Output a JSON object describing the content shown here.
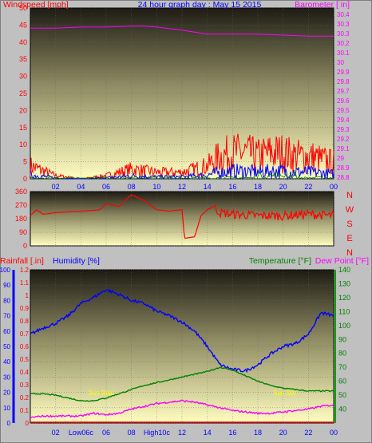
{
  "title": "24 hour graph day : May 15 2015",
  "hour_ticks": [
    "02",
    "04",
    "06",
    "08",
    "10",
    "12",
    "14",
    "16",
    "18",
    "20",
    "22",
    "00"
  ],
  "bottom_ticks": [
    "02",
    "Low06c",
    "06",
    "08",
    "High10c",
    "12",
    "14",
    "16",
    "18",
    "20",
    "22",
    "00"
  ],
  "colors": {
    "windspeed": "#ff0000",
    "gust_low": "#0000ff",
    "avg": "#008000",
    "barometer": "#ff00ff",
    "humidity": "#0000ff",
    "temperature": "#008000",
    "dewpoint": "#ff00ff",
    "rainfall": "#ff0000",
    "sun": "#ffff00"
  },
  "chart_data": [
    {
      "type": "line",
      "panel": "wind-barometer",
      "ylabel_left": "Windspeed [mph]",
      "ylabel_right": "Barometer [ in]",
      "ylim_left": [
        0,
        50
      ],
      "yticks_left": [
        0,
        5,
        10,
        15,
        20,
        25,
        30,
        35,
        40,
        45,
        50
      ],
      "ylim_right": [
        28.8,
        30.5
      ],
      "yticks_right": [
        "28.8",
        "28.9",
        "29",
        "29.1",
        "29.2",
        "29.3",
        "29.4",
        "29.5",
        "29.6",
        "29.7",
        "29.8",
        "29.9",
        "30",
        "30.1",
        "30.2",
        "30.3",
        "30.3",
        "30.4"
      ],
      "series": [
        {
          "name": "Windspeed",
          "x": [
            0,
            2,
            4,
            6,
            8,
            10,
            12,
            13,
            14,
            15,
            16,
            17,
            18,
            19,
            20,
            21,
            22,
            23,
            24
          ],
          "values": [
            4,
            1,
            0,
            1,
            3,
            2,
            2,
            3,
            4,
            7,
            8,
            8,
            7,
            8,
            8,
            7,
            7,
            6,
            5
          ]
        },
        {
          "name": "Barometer",
          "x": [
            0,
            2,
            4,
            6,
            8,
            9,
            10,
            12,
            13,
            14,
            16,
            18,
            20,
            22,
            23,
            24
          ],
          "values": [
            30.3,
            30.3,
            30.31,
            30.31,
            30.32,
            30.32,
            30.31,
            30.28,
            30.26,
            30.24,
            30.24,
            30.24,
            30.23,
            30.22,
            30.22,
            30.22
          ]
        }
      ]
    },
    {
      "type": "line",
      "panel": "wind-direction",
      "ylim": [
        0,
        360
      ],
      "yticks": [
        0,
        90,
        180,
        270,
        360
      ],
      "compass": [
        "N",
        "W",
        "S",
        "E",
        "N"
      ],
      "series": [
        {
          "name": "Direction",
          "x": [
            0,
            0.5,
            1,
            2,
            4,
            5,
            5.5,
            6,
            7,
            8,
            9,
            10,
            11,
            12,
            12.2,
            13,
            13.5,
            14,
            14.5,
            15,
            16,
            18,
            20,
            22,
            24
          ],
          "values": [
            200,
            240,
            210,
            220,
            230,
            235,
            240,
            280,
            260,
            340,
            300,
            240,
            230,
            240,
            50,
            60,
            200,
            240,
            260,
            220,
            210,
            200,
            200,
            210,
            200
          ]
        }
      ]
    },
    {
      "type": "line",
      "panel": "temperature-humidity",
      "ylabel_rain": "Rainfall [.in]",
      "ylabel_humidity": "Humidity [%]",
      "ylabel_temp": "Temperature [°F]",
      "ylabel_dew": "Dew Point [°F]",
      "ylim_humidity": [
        0,
        100
      ],
      "yticks_humidity": [
        0,
        10,
        20,
        30,
        40,
        50,
        60,
        70,
        80,
        90,
        100
      ],
      "ylim_rain": [
        0,
        1.2
      ],
      "yticks_rain": [
        "0",
        "0.1",
        "0.2",
        "0.3",
        "0.4",
        "0.5",
        "0.6",
        "0.7",
        "0.8",
        "0.9",
        "1",
        "1.1",
        "1.2"
      ],
      "ylim_temp": [
        30,
        140
      ],
      "yticks_temp": [
        40,
        50,
        60,
        70,
        80,
        90,
        100,
        110,
        120,
        130,
        140
      ],
      "series": [
        {
          "name": "Humidity",
          "x": [
            0,
            1,
            2,
            3,
            4,
            5,
            6,
            7,
            8,
            9,
            10,
            11,
            12,
            13,
            14,
            15,
            16,
            17,
            18,
            19,
            20,
            21,
            22,
            23,
            24
          ],
          "values": [
            58,
            62,
            65,
            70,
            78,
            82,
            87,
            84,
            80,
            78,
            73,
            70,
            66,
            60,
            50,
            38,
            35,
            34,
            38,
            45,
            50,
            52,
            58,
            72,
            70
          ]
        },
        {
          "name": "Temperature",
          "x": [
            0,
            1,
            2,
            3,
            4,
            5,
            6,
            7,
            8,
            9,
            10,
            11,
            12,
            13,
            14,
            15,
            16,
            17,
            18,
            19,
            20,
            21,
            22,
            23,
            24
          ],
          "values": [
            51,
            51,
            50,
            48,
            46,
            46,
            48,
            51,
            54,
            57,
            59,
            61,
            63,
            65,
            67,
            70,
            68,
            64,
            60,
            57,
            55,
            54,
            53,
            53,
            53
          ]
        },
        {
          "name": "Dew Point",
          "x": [
            0,
            1,
            2,
            3,
            4,
            5,
            6,
            7,
            8,
            9,
            10,
            11,
            12,
            13,
            14,
            15,
            16,
            17,
            18,
            19,
            20,
            21,
            22,
            23,
            24
          ],
          "values": [
            34,
            35,
            35,
            35,
            35,
            37,
            36,
            37,
            40,
            42,
            44,
            45,
            46,
            45,
            43,
            41,
            39,
            38,
            37,
            37,
            38,
            39,
            40,
            42,
            43
          ]
        }
      ]
    }
  ],
  "annotations": [
    "Sun Rise",
    "Sun Set"
  ]
}
